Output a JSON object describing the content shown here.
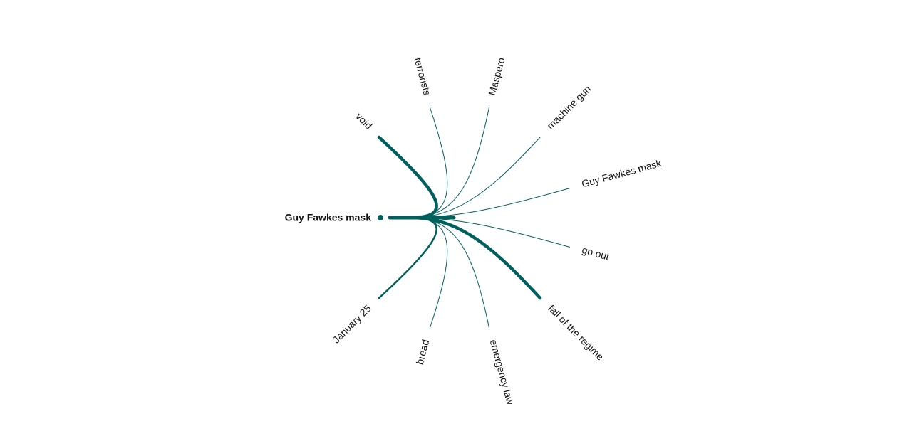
{
  "graph": {
    "accent_color": "#00605e",
    "root": {
      "label": "Guy Fawkes mask"
    },
    "links": [
      {
        "label": "void",
        "strength": "strong"
      },
      {
        "label": "terrorists",
        "strength": "weak"
      },
      {
        "label": "Maspero",
        "strength": "weak"
      },
      {
        "label": "machine gun",
        "strength": "weak"
      },
      {
        "label": "Guy Fawkes mask",
        "strength": "weak"
      },
      {
        "label": "go out",
        "strength": "weak"
      },
      {
        "label": "fall of the regime",
        "strength": "strong"
      },
      {
        "label": "emergency law",
        "strength": "weak"
      },
      {
        "label": "bread",
        "strength": "weak"
      },
      {
        "label": "January 25",
        "strength": "medium"
      }
    ]
  }
}
